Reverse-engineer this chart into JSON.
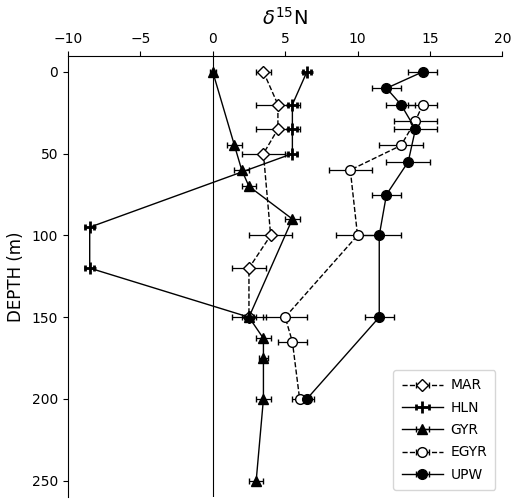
{
  "xlim": [
    -10,
    20
  ],
  "ylim": [
    260,
    -10
  ],
  "xticks": [
    -10,
    -5,
    0,
    5,
    10,
    15,
    20
  ],
  "yticks": [
    0,
    50,
    100,
    150,
    200,
    250
  ],
  "xlabel": "$\\delta^{15}$N",
  "ylabel": "DEPTH (m)",
  "MAR": {
    "depth": [
      0,
      20,
      35,
      50,
      100,
      120,
      150
    ],
    "val": [
      3.5,
      4.5,
      4.5,
      3.5,
      4.0,
      2.5,
      2.5
    ],
    "xerr": [
      0.5,
      1.5,
      1.5,
      1.5,
      1.5,
      1.2,
      1.2
    ]
  },
  "HLN": {
    "depth": [
      0,
      20,
      35,
      50,
      95,
      120,
      150
    ],
    "val": [
      6.5,
      5.5,
      5.5,
      5.5,
      -8.5,
      -8.5,
      2.5
    ],
    "xerr": [
      0.3,
      0.3,
      0.3,
      0.3,
      0.3,
      0.3,
      0.3
    ]
  },
  "GYR": {
    "depth": [
      0,
      45,
      60,
      70,
      90,
      150,
      163,
      175,
      200,
      250
    ],
    "val": [
      0.0,
      1.5,
      2.0,
      2.5,
      5.5,
      2.5,
      3.5,
      3.5,
      3.5,
      3.0
    ],
    "xerr": [
      0.2,
      0.5,
      0.5,
      0.5,
      0.5,
      0.5,
      0.5,
      0.3,
      0.5,
      0.5
    ]
  },
  "EGYR": {
    "depth": [
      20,
      30,
      45,
      60,
      100,
      150,
      165,
      200
    ],
    "val": [
      14.5,
      14.0,
      13.0,
      9.5,
      10.0,
      5.0,
      5.5,
      6.0
    ],
    "xerr": [
      1.0,
      1.5,
      1.5,
      1.5,
      1.5,
      1.5,
      1.0,
      0.5
    ]
  },
  "UPW": {
    "depth": [
      0,
      10,
      20,
      35,
      55,
      75,
      100,
      150,
      200
    ],
    "val": [
      14.5,
      12.0,
      13.0,
      14.0,
      13.5,
      12.0,
      11.5,
      11.5,
      6.5
    ],
    "xerr": [
      1.0,
      1.0,
      1.0,
      1.5,
      1.5,
      1.0,
      1.5,
      1.0,
      0.5
    ]
  }
}
